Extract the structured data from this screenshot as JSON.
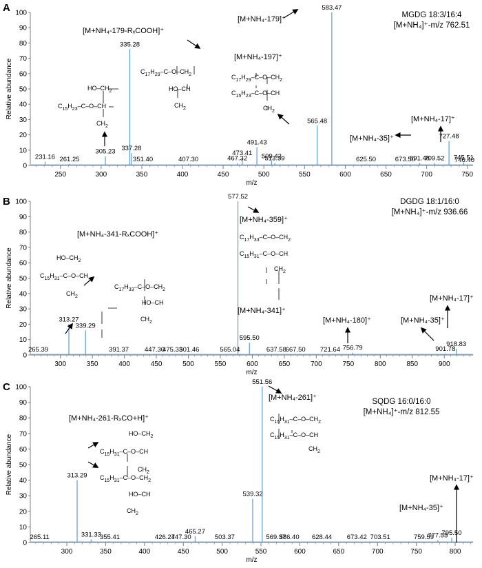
{
  "colors": {
    "peak": "#5b9bd5",
    "axis": "#808080",
    "text": "#000000"
  },
  "chart_data": [
    {
      "type": "bar",
      "panel": "A",
      "xlabel": "m/z",
      "ylabel": "Relative abundance",
      "xlim": [
        213,
        757
      ],
      "ylim": [
        0,
        100
      ],
      "xticks": [
        250,
        300,
        350,
        400,
        450,
        500,
        550,
        600,
        650,
        700,
        750
      ],
      "yticks": [
        0,
        10,
        20,
        30,
        40,
        50,
        60,
        70,
        80,
        90,
        100
      ],
      "info": [
        "MGDG 18:3/16:4",
        "[M+NH₄]⁺-m/z 762.51"
      ],
      "peaks": [
        {
          "x": 231.16,
          "y": 2.5,
          "label": "231.16"
        },
        {
          "x": 261.25,
          "y": 1,
          "label": "261.25"
        },
        {
          "x": 305.23,
          "y": 6,
          "label": "305.23"
        },
        {
          "x": 335.28,
          "y": 76,
          "label": "335.28"
        },
        {
          "x": 337.28,
          "y": 8,
          "label": "337.28"
        },
        {
          "x": 351.4,
          "y": 1,
          "label": "351.40"
        },
        {
          "x": 407.3,
          "y": 1,
          "label": "407.30"
        },
        {
          "x": 467.32,
          "y": 1.5,
          "label": "467.32"
        },
        {
          "x": 473.41,
          "y": 5,
          "label": "473.41"
        },
        {
          "x": 491.43,
          "y": 12,
          "label": "491.43"
        },
        {
          "x": 509.42,
          "y": 3,
          "label": "509.42"
        },
        {
          "x": 513.39,
          "y": 1.5,
          "label": "513.39"
        },
        {
          "x": 565.48,
          "y": 26,
          "label": "565.48"
        },
        {
          "x": 583.47,
          "y": 100,
          "label": "583.47"
        },
        {
          "x": 625.5,
          "y": 0.8,
          "label": "625.50"
        },
        {
          "x": 673.5,
          "y": 0.8,
          "label": "673.50"
        },
        {
          "x": 691.48,
          "y": 1.5,
          "label": "691.48"
        },
        {
          "x": 709.52,
          "y": 1.5,
          "label": "709.52"
        },
        {
          "x": 727.48,
          "y": 16,
          "label": "727.48"
        },
        {
          "x": 745.51,
          "y": 2,
          "label": "745.51"
        },
        {
          "x": 746.4,
          "y": 0.5,
          "label": "746.40"
        }
      ],
      "annotations": [
        "[M+NH₄-179-RₓCOOH]⁺",
        "[M+NH₄-179]⁺",
        "[M+NH₄-197]⁺",
        "[M+NH₄-17]⁺",
        "[M+NH₄-35]⁺"
      ]
    },
    {
      "type": "bar",
      "panel": "B",
      "xlabel": "m/z",
      "ylabel": "Relative abundance",
      "xlim": [
        253,
        945
      ],
      "ylim": [
        0,
        100
      ],
      "xticks": [
        300,
        350,
        400,
        450,
        500,
        550,
        600,
        650,
        700,
        750,
        800,
        850,
        900
      ],
      "yticks": [
        0,
        10,
        20,
        30,
        40,
        50,
        60,
        70,
        80,
        90,
        100
      ],
      "info": [
        "DGDG 18:1/16:0",
        "[M+NH₄]⁺-m/z 936.66"
      ],
      "peaks": [
        {
          "x": 265.39,
          "y": 0.5,
          "label": "265.39"
        },
        {
          "x": 313.27,
          "y": 20,
          "label": "313.27"
        },
        {
          "x": 339.29,
          "y": 16,
          "label": "339.29"
        },
        {
          "x": 391.37,
          "y": 0.5,
          "label": "391.37"
        },
        {
          "x": 447.3,
          "y": 0.5,
          "label": "447.30"
        },
        {
          "x": 475.33,
          "y": 0.5,
          "label": "475.33"
        },
        {
          "x": 501.46,
          "y": 0.5,
          "label": "501.46"
        },
        {
          "x": 565.04,
          "y": 0.5,
          "label": "565.04"
        },
        {
          "x": 577.52,
          "y": 100,
          "label": "577.52"
        },
        {
          "x": 595.5,
          "y": 8,
          "label": "595.50"
        },
        {
          "x": 637.58,
          "y": 0.5,
          "label": "637.58"
        },
        {
          "x": 667.5,
          "y": 0.5,
          "label": "667.50"
        },
        {
          "x": 721.64,
          "y": 0.5,
          "label": "721.64"
        },
        {
          "x": 756.79,
          "y": 1.5,
          "label": "756.79"
        },
        {
          "x": 901.78,
          "y": 1,
          "label": "901.78"
        },
        {
          "x": 918.83,
          "y": 4,
          "label": "918.83"
        }
      ],
      "annotations": [
        "[M+NH₄-341-RₓCOOH]⁺",
        "[M+NH₄-359]⁺",
        "[M+NH₄-341]⁺",
        "[M+NH₄-180]⁺",
        "[M+NH₄-35]⁺",
        "[M+NH₄-17]⁺"
      ]
    },
    {
      "type": "bar",
      "panel": "C",
      "xlabel": "m/z",
      "ylabel": "Relative abundance",
      "xlim": [
        253,
        823
      ],
      "ylim": [
        0,
        100
      ],
      "xticks": [
        300,
        350,
        400,
        450,
        500,
        550,
        600,
        650,
        700,
        750,
        800
      ],
      "yticks": [
        0,
        10,
        20,
        30,
        40,
        50,
        60,
        70,
        80,
        90,
        100
      ],
      "info": [
        "SQDG 16:0/16:0",
        "[M+NH₄]⁺-m/z 812.55"
      ],
      "peaks": [
        {
          "x": 265.11,
          "y": 0.5,
          "label": "265.11"
        },
        {
          "x": 313.29,
          "y": 40,
          "label": "313.29"
        },
        {
          "x": 331.33,
          "y": 2,
          "label": "331.33"
        },
        {
          "x": 355.41,
          "y": 0.5,
          "label": "355.41"
        },
        {
          "x": 426.27,
          "y": 0.5,
          "label": "426.27"
        },
        {
          "x": 447.3,
          "y": 0.5,
          "label": "447.30"
        },
        {
          "x": 465.27,
          "y": 4,
          "label": "465.27"
        },
        {
          "x": 503.37,
          "y": 0.5,
          "label": "503.37"
        },
        {
          "x": 539.32,
          "y": 28,
          "label": "539.32"
        },
        {
          "x": 551.56,
          "y": 100,
          "label": "551.56"
        },
        {
          "x": 569.37,
          "y": 0.5,
          "label": "569.37"
        },
        {
          "x": 586.4,
          "y": 0.5,
          "label": "586.40"
        },
        {
          "x": 628.44,
          "y": 0.5,
          "label": "628.44"
        },
        {
          "x": 673.42,
          "y": 0.5,
          "label": "673.42"
        },
        {
          "x": 703.51,
          "y": 0.5,
          "label": "703.51"
        },
        {
          "x": 759.59,
          "y": 0.5,
          "label": "759.59"
        },
        {
          "x": 777.55,
          "y": 1.5,
          "label": "777.55"
        },
        {
          "x": 795.5,
          "y": 3,
          "label": "795.50"
        }
      ],
      "annotations": [
        "[M+NH₄-261-RₓCO+H]⁺",
        "[M+NH₄-261]⁺",
        "[M+NH₄-35]⁺",
        "[M+NH₄-17]⁺"
      ]
    }
  ]
}
